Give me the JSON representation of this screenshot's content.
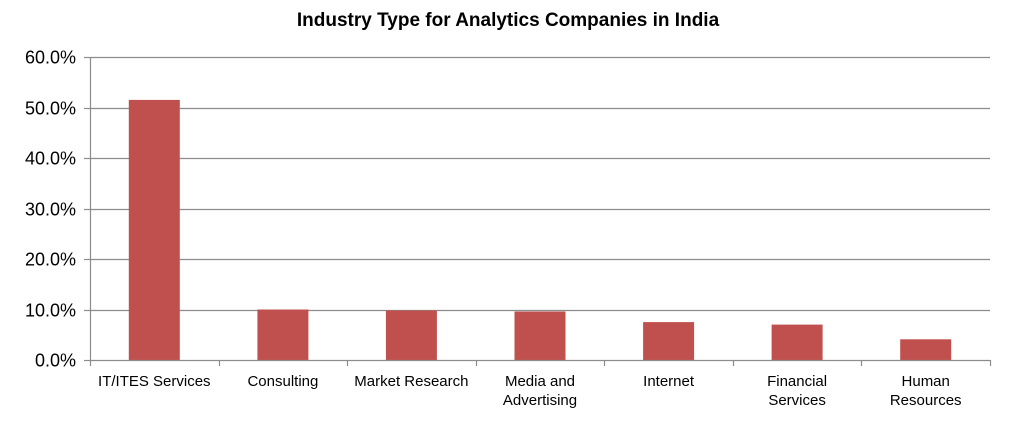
{
  "chart_data": {
    "type": "bar",
    "title": "Industry Type for Analytics Companies in India",
    "xlabel": "",
    "ylabel": "",
    "categories": [
      [
        "IT/ITES Services"
      ],
      [
        "Consulting"
      ],
      [
        "Market Research"
      ],
      [
        "Media and",
        "Advertising"
      ],
      [
        "Internet"
      ],
      [
        "Financial",
        "Services"
      ],
      [
        "Human",
        "Resources"
      ]
    ],
    "values": [
      51.5,
      10.0,
      9.8,
      9.6,
      7.5,
      7.0,
      4.1
    ],
    "ylim": [
      0,
      60
    ],
    "yticks": [
      0,
      10,
      20,
      30,
      40,
      50,
      60
    ],
    "ytick_labels": [
      "0.0%",
      "10.0%",
      "20.0%",
      "30.0%",
      "40.0%",
      "50.0%",
      "60.0%"
    ],
    "grid": true,
    "legend": "none",
    "colors": {
      "bar": "#c0504d",
      "grid": "#8c8c8c",
      "axis": "#8c8c8c",
      "text": "#000000"
    }
  }
}
